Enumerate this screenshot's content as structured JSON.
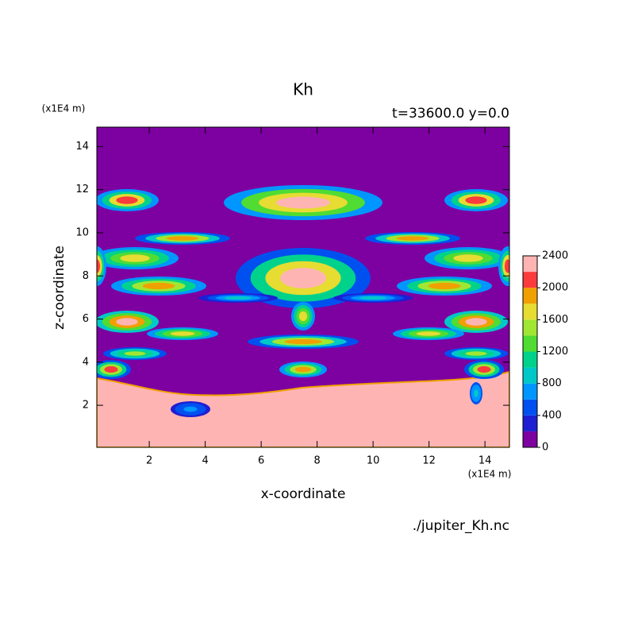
{
  "chart_data": {
    "type": "contour",
    "title": "Kh",
    "subtitle": "t=33600.0 y=0.0",
    "x_label": "x-coordinate",
    "y_label": "z-coordinate",
    "x_unit": "(x1E4 m)",
    "y_unit": "(x1E4 m)",
    "source": "./jupiter_Kh.nc",
    "xlim": [
      0.125,
      14.875
    ],
    "ylim": [
      0.05,
      14.9
    ],
    "xticks": [
      2,
      4,
      6,
      8,
      10,
      12,
      14
    ],
    "yticks": [
      2,
      4,
      6,
      8,
      10,
      12,
      14
    ],
    "levels": [
      0,
      200,
      400,
      600,
      800,
      1000,
      1200,
      1400,
      1600,
      1800,
      2000,
      2200,
      2400
    ],
    "colors": [
      "#7d00a0",
      "#1e1ed2",
      "#0050f0",
      "#0096ff",
      "#00c8c8",
      "#00d28c",
      "#50dc32",
      "#a0e632",
      "#e6dc32",
      "#f0a000",
      "#fa3c3c",
      "#ffb4b4"
    ],
    "colorbar_ticks": [
      0,
      400,
      800,
      1200,
      1600,
      2000,
      2400
    ]
  }
}
